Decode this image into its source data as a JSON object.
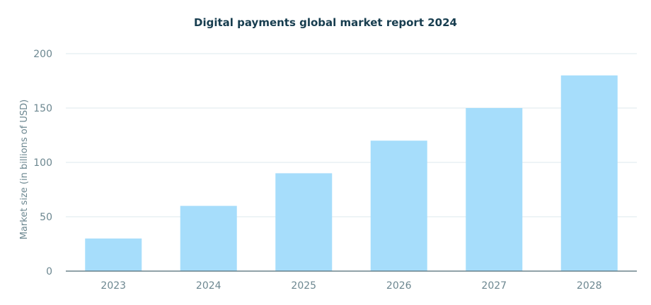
{
  "chart_data": {
    "type": "bar",
    "title": "Digital payments global market report 2024",
    "ylabel": "Market size (in billions of USD)",
    "xlabel": "",
    "categories": [
      "2023",
      "2024",
      "2025",
      "2026",
      "2027",
      "2028"
    ],
    "values": [
      30,
      60,
      90,
      120,
      150,
      180
    ],
    "ylim": [
      0,
      200
    ],
    "yticks": [
      0,
      50,
      100,
      150,
      200
    ],
    "grid": true,
    "bar_color": "#a6ddfb",
    "legend": "none"
  }
}
